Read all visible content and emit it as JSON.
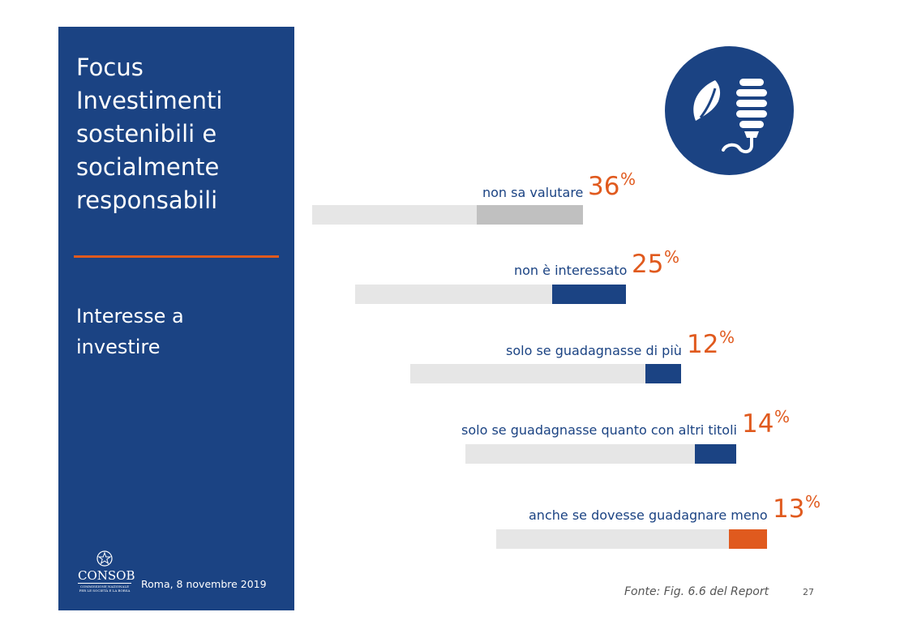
{
  "sidebar": {
    "title_lines": [
      "Focus",
      "Investimenti",
      "sostenibili e",
      "socialmente",
      "responsabili"
    ],
    "subtitle_lines": [
      "Interesse a",
      "investire"
    ],
    "logo_text": "CONSOB",
    "logo_small": "COMMISSIONE NAZIONALE PER LE SOCIETÀ E LA BORSA",
    "dateline": "Roma, 8 novembre 2019"
  },
  "icon": "leaf-bulb-icon",
  "colors": {
    "navy": "#1b4383",
    "orange": "#e05a1e",
    "track": "#e6e6e6",
    "grey_segment": "#c0c0c0"
  },
  "chart_data": {
    "type": "bar",
    "categories": [
      "non sa valutare",
      "non è interessato",
      "solo se guadagnasse di più",
      "solo se guadagnasse quanto con altri titoli",
      "anche se dovesse guadagnare meno"
    ],
    "values": [
      36,
      25,
      12,
      14,
      13
    ],
    "value_labels": [
      "36",
      "25",
      "12",
      "14",
      "13"
    ],
    "unit": "%",
    "segment_colors": [
      "#c0c0c0",
      "#1b4383",
      "#1b4383",
      "#1b4383",
      "#e05a1e"
    ],
    "grid": false
  },
  "footer": {
    "source": "Fonte: Fig. 6.6 del Report",
    "page_number": "27"
  }
}
